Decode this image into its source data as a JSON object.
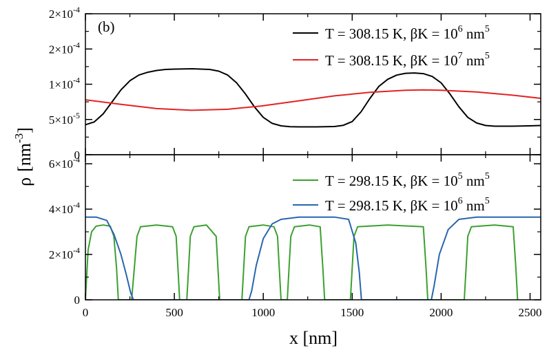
{
  "chart_data": {
    "type": "line",
    "shared_x": {
      "label": "x [nm]",
      "range": [
        0,
        2560
      ],
      "ticks": [
        0,
        500,
        1000,
        1500,
        2000,
        2500
      ],
      "tick_labels": [
        "0",
        "500",
        "1000",
        "1500",
        "2000",
        "2500"
      ]
    },
    "ylabel": {
      "symbol": "ρ",
      "unit": "[nm",
      "exp": "-3",
      "close": "]"
    },
    "panels": [
      {
        "id": "top",
        "panel_label": "(b)",
        "ylim": [
          0,
          0.0002
        ],
        "yticks": [
          {
            "value": 0,
            "mant": "0",
            "exp": ""
          },
          {
            "value": 5e-05,
            "mant": "5×10",
            "exp": "-5"
          },
          {
            "value": 0.0001,
            "mant": "1×10",
            "exp": "-4"
          },
          {
            "value": 0.00015,
            "mant": "2×10",
            "exp": "-4"
          },
          {
            "value": 0.0002,
            "mant": "2×10",
            "exp": "-4"
          }
        ],
        "series": [
          {
            "name": "T = 308.15 K, βK = 10^6 nm^5",
            "legend": {
              "pre": "T = 308.15 K, βK = 10",
              "exp1": "6",
              "mid": " nm",
              "exp2": "5"
            },
            "color": "#000000",
            "x": [
              0,
              50,
              100,
              150,
              200,
              250,
              300,
              350,
              400,
              450,
              500,
              600,
              700,
              750,
              800,
              850,
              900,
              950,
              1000,
              1050,
              1100,
              1150,
              1200,
              1300,
              1400,
              1450,
              1500,
              1550,
              1600,
              1650,
              1700,
              1750,
              1800,
              1850,
              1900,
              1950,
              2000,
              2050,
              2100,
              2150,
              2200,
              2250,
              2300,
              2400,
              2500,
              2560
            ],
            "y": [
              4.25e-05,
              4.65e-05,
              5.8e-05,
              7.5e-05,
              9.2e-05,
              0.000105,
              0.000113,
              0.000117,
              0.0001195,
              0.000121,
              0.0001215,
              0.000122,
              0.000121,
              0.0001185,
              0.000113,
              0.000102,
              8.6e-05,
              6.8e-05,
              5.3e-05,
              4.45e-05,
              4.1e-05,
              3.98e-05,
              3.95e-05,
              3.95e-05,
              4e-05,
              4.18e-05,
              4.7e-05,
              6.1e-05,
              8e-05,
              9.7e-05,
              0.000107,
              0.000113,
              0.0001155,
              0.000116,
              0.000115,
              0.000111,
              0.000102,
              8.6e-05,
              6.8e-05,
              5.3e-05,
              4.5e-05,
              4.15e-05,
              4.05e-05,
              4.05e-05,
              4.1e-05,
              4.15e-05
            ]
          },
          {
            "name": "T = 308.15 K, βK = 10^7 nm^5",
            "legend": {
              "pre": "T = 308.15 K, βK = 10",
              "exp1": "7",
              "mid": " nm",
              "exp2": "5"
            },
            "color": "#e32222",
            "x": [
              0,
              200,
              400,
              600,
              800,
              1000,
              1200,
              1400,
              1600,
              1800,
              1900,
              2000,
              2200,
              2400,
              2560
            ],
            "y": [
              7.8e-05,
              7.15e-05,
              6.55e-05,
              6.3e-05,
              6.45e-05,
              6.95e-05,
              7.65e-05,
              8.35e-05,
              8.85e-05,
              9.15e-05,
              9.2e-05,
              9.15e-05,
              8.9e-05,
              8.45e-05,
              8e-05
            ]
          }
        ]
      },
      {
        "id": "bottom",
        "panel_label": "",
        "ylim": [
          0,
          0.00064
        ],
        "yticks": [
          {
            "value": 0,
            "mant": "0",
            "exp": ""
          },
          {
            "value": 0.0002,
            "mant": "2×10",
            "exp": "-4"
          },
          {
            "value": 0.0004,
            "mant": "4×10",
            "exp": "-4"
          },
          {
            "value": 0.0006,
            "mant": "6×10",
            "exp": "-4"
          }
        ],
        "series": [
          {
            "name": "T = 298.15 K, βK = 10^5 nm^5",
            "legend": {
              "pre": "T = 298.15 K, βK = 10",
              "exp1": "5",
              "mid": " nm",
              "exp2": "5"
            },
            "color": "#3aa02f",
            "x": [
              0,
              15,
              35,
              60,
              100,
              140,
              160,
              175,
              185,
              260,
              275,
              290,
              310,
              400,
              490,
              510,
              520,
              530,
              570,
              580,
              590,
              610,
              680,
              735,
              745,
              755,
              880,
              890,
              900,
              920,
              1000,
              1060,
              1080,
              1090,
              1100,
              1135,
              1145,
              1155,
              1175,
              1260,
              1320,
              1335,
              1345,
              1490,
              1500,
              1510,
              1530,
              1700,
              1900,
              1915,
              1925,
              2130,
              2140,
              2150,
              2170,
              2300,
              2405,
              2420,
              2430
            ],
            "y": [
              0,
              0.00022,
              0.0003,
              0.000325,
              0.00033,
              0.000325,
              0.00028,
              0.00014,
              0,
              0,
              0.00014,
              0.00028,
              0.000322,
              0.00033,
              0.000322,
              0.00028,
              0.00014,
              0,
              0,
              0.00014,
              0.00028,
              0.000322,
              0.00033,
              0.00028,
              0.00014,
              0,
              0,
              0.00014,
              0.00028,
              0.000322,
              0.00033,
              0.000322,
              0.00028,
              0.00014,
              0,
              0,
              0.00014,
              0.00028,
              0.000322,
              0.00033,
              0.000322,
              0.00014,
              0,
              0,
              0.00014,
              0.00028,
              0.000322,
              0.00033,
              0.000322,
              0.00014,
              0,
              0,
              0.00014,
              0.00028,
              0.000322,
              0.00033,
              0.000322,
              0.00014,
              0
            ]
          },
          {
            "name": "T = 298.15 K, βK = 10^6 nm^5",
            "legend": {
              "pre": "T = 298.15 K, βK = 10",
              "exp1": "6",
              "mid": " nm",
              "exp2": "5"
            },
            "color": "#2765b0",
            "x": [
              0,
              60,
              120,
              160,
              200,
              230,
              255,
              270,
              920,
              935,
              960,
              1000,
              1050,
              1100,
              1200,
              1400,
              1480,
              1520,
              1540,
              1552,
              1945,
              1960,
              1990,
              2040,
              2100,
              2200,
              2560
            ],
            "y": [
              0.000365,
              0.000365,
              0.00035,
              0.00029,
              0.0002,
              0.00011,
              3e-05,
              0,
              0,
              4e-05,
              0.00015,
              0.00027,
              0.000335,
              0.000355,
              0.000365,
              0.000365,
              0.000355,
              0.00025,
              0.00012,
              0,
              0,
              6e-05,
              0.0002,
              0.00031,
              0.000355,
              0.000365,
              0.000365
            ]
          }
        ]
      }
    ]
  }
}
